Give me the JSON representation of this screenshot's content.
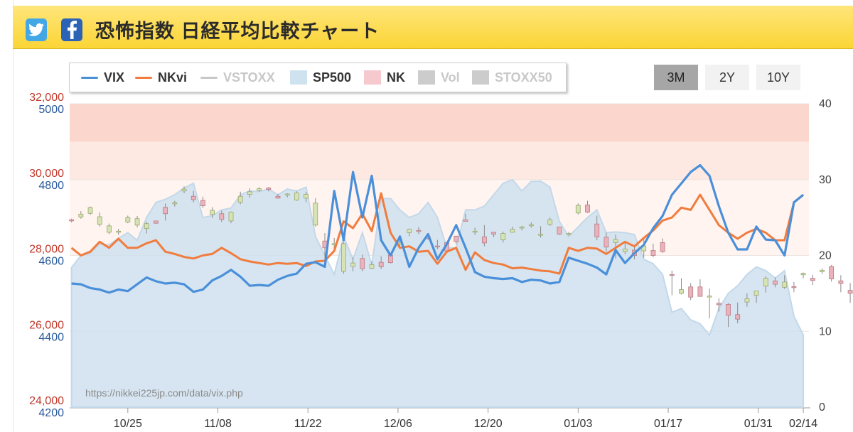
{
  "header": {
    "title": "恐怖指数 日経平均比較チャート",
    "twitter_icon": "twitter-bird-icon",
    "facebook_icon": "facebook-f-icon",
    "colors": {
      "header_bg": "#fbd536",
      "twitter": "#43a7e6",
      "facebook": "#2c63b6"
    }
  },
  "range_buttons": {
    "b3m": "3M",
    "b2y": "2Y",
    "b10y": "10Y",
    "active": "3M"
  },
  "watermark": "https://nikkei225jp.com/data/vix.php",
  "chart_data": {
    "type": "line",
    "legend": [
      {
        "name": "VIX",
        "enabled": true,
        "color": "#4a8fd9"
      },
      {
        "name": "NKvi",
        "enabled": true,
        "color": "#f07c3e"
      },
      {
        "name": "VSTOXX",
        "enabled": false,
        "color": "#c8c8c8"
      },
      {
        "name": "SP500",
        "enabled": true,
        "color": "#cfe2f0"
      },
      {
        "name": "NK",
        "enabled": true,
        "color": "#f6c9cf"
      },
      {
        "name": "Vol",
        "enabled": false,
        "color": "#cccccc"
      },
      {
        "name": "STOXX50",
        "enabled": false,
        "color": "#cccccc"
      }
    ],
    "x_ticks": [
      "10/25",
      "11/08",
      "11/22",
      "12/06",
      "12/20",
      "01/03",
      "01/17",
      "01/31",
      "02/14"
    ],
    "y_left_nk": {
      "ticks": [
        "32,000",
        "30,000",
        "28,000",
        "26,000",
        "24,000"
      ],
      "ylim": [
        24000,
        32000
      ]
    },
    "y_left_sp500": {
      "ticks": [
        "5000",
        "4800",
        "4600",
        "4400",
        "4200"
      ],
      "ylim": [
        4200,
        5000
      ]
    },
    "y_right_vix": {
      "ticks": [
        "40",
        "30",
        "20",
        "10",
        "0"
      ],
      "ylim": [
        0,
        40
      ]
    },
    "fear_bands": [
      {
        "from": 35,
        "to": 40,
        "color": "#fbd6cc"
      },
      {
        "from": 30,
        "to": 35,
        "color": "#fde9e2"
      },
      {
        "from": 20,
        "to": 30,
        "color": "#fff4f0"
      }
    ],
    "series": [
      {
        "name": "VIX",
        "values": [
          16.3,
          16.2,
          15.7,
          15.5,
          15.1,
          15.5,
          15.3,
          16.2,
          17.1,
          16.6,
          16.3,
          16.4,
          16.2,
          15.2,
          15.5,
          16.7,
          17.3,
          18.1,
          17.2,
          16.0,
          16.1,
          16.0,
          16.8,
          17.3,
          17.6,
          18.9,
          19.1,
          18.5,
          28.5,
          22.0,
          31.0,
          25.0,
          30.5,
          22.0,
          20.0,
          22.5,
          18.5,
          21.0,
          22.8,
          19.5,
          21.5,
          24.0,
          21.0,
          17.8,
          17.2,
          17.0,
          16.9,
          17.0,
          16.5,
          16.8,
          16.7,
          16.3,
          16.5,
          19.7,
          19.3,
          18.9,
          18.4,
          17.5,
          20.7,
          19.0,
          20.3,
          21.4,
          23.6,
          25.2,
          28.0,
          29.5,
          31.0,
          31.9,
          30.5,
          26.5,
          23.0,
          20.8,
          20.8,
          23.8,
          22.1,
          22.0,
          20.0,
          27.0,
          28.0
        ]
      },
      {
        "name": "NKvi",
        "values": [
          21.0,
          20.0,
          20.5,
          21.8,
          21.0,
          22.2,
          21.0,
          21.0,
          21.6,
          22.0,
          20.5,
          20.2,
          19.8,
          19.6,
          20.0,
          20.2,
          21.0,
          20.3,
          19.5,
          19.2,
          19.0,
          18.8,
          19.0,
          18.9,
          19.0,
          18.6,
          19.2,
          19.3,
          20.6,
          24.5,
          23.6,
          25.5,
          23.2,
          28.2,
          23.0,
          21.0,
          21.2,
          20.5,
          20.6,
          18.9,
          20.5,
          21.0,
          18.1,
          20.4,
          19.4,
          19.0,
          18.8,
          18.3,
          18.4,
          18.2,
          18.0,
          17.9,
          17.6,
          21.0,
          20.6,
          21.0,
          20.9,
          20.2,
          21.0,
          21.8,
          21.2,
          22.3,
          23.3,
          24.6,
          25.0,
          26.3,
          26.0,
          28.0,
          26.0,
          24.0,
          23.0,
          22.2,
          23.0,
          23.5,
          23.0,
          22.0,
          22.0,
          27.0,
          28.0
        ]
      }
    ],
    "sp500_values": [
      4568,
      4600,
      4605,
      4630,
      4628,
      4645,
      4660,
      4640,
      4700,
      4740,
      4748,
      4760,
      4778,
      4790,
      4700,
      4705,
      4720,
      4725,
      4760,
      4770,
      4768,
      4775,
      4760,
      4775,
      4770,
      4780,
      4650,
      4600,
      4550,
      4650,
      4590,
      4660,
      4575,
      4750,
      4750,
      4720,
      4700,
      4710,
      4740,
      4700,
      4620,
      4620,
      4720,
      4720,
      4730,
      4760,
      4790,
      4800,
      4770,
      4795,
      4796,
      4780,
      4690,
      4650,
      4675,
      4700,
      4720,
      4660,
      4662,
      4660,
      4655,
      4590,
      4578,
      4550,
      4450,
      4460,
      4430,
      4420,
      4390,
      4460,
      4500,
      4520,
      4550,
      4570,
      4560,
      4540,
      4560,
      4440,
      4390
    ],
    "nk_candles": [
      [
        28940,
        28970,
        28870,
        28920
      ],
      [
        29010,
        29170,
        28970,
        29090
      ],
      [
        29110,
        29290,
        29070,
        29260
      ],
      [
        28820,
        29130,
        28760,
        29020
      ],
      [
        28610,
        28840,
        28560,
        28780
      ],
      [
        28620,
        28700,
        28540,
        28640
      ],
      [
        28880,
        29050,
        28850,
        29000
      ],
      [
        28800,
        29040,
        28740,
        28970
      ],
      [
        28710,
        28890,
        28580,
        28840
      ],
      [
        28910,
        28880,
        28830,
        28850
      ],
      [
        29270,
        29370,
        28920,
        29100
      ],
      [
        29380,
        29440,
        29290,
        29390
      ],
      [
        29700,
        29820,
        29640,
        29750
      ],
      [
        29560,
        29700,
        29400,
        29470
      ],
      [
        29450,
        29550,
        29250,
        29310
      ],
      [
        29080,
        29270,
        28990,
        29190
      ],
      [
        29100,
        29180,
        28880,
        28950
      ],
      [
        28910,
        29160,
        28850,
        29140
      ],
      [
        29400,
        29680,
        29350,
        29560
      ],
      [
        29610,
        29770,
        29520,
        29680
      ],
      [
        29710,
        29800,
        29680,
        29760
      ],
      [
        29780,
        29800,
        29690,
        29740
      ],
      [
        29560,
        29620,
        29510,
        29510
      ],
      [
        29610,
        29640,
        29530,
        29620
      ],
      [
        29460,
        29690,
        29440,
        29650
      ],
      [
        29510,
        29670,
        29400,
        29610
      ],
      [
        28800,
        29510,
        28760,
        29380
      ],
      [
        28380,
        28590,
        27730,
        28200
      ],
      [
        28280,
        28460,
        28180,
        28310
      ],
      [
        27580,
        28350,
        27520,
        28310
      ],
      [
        27710,
        27950,
        27580,
        27800
      ],
      [
        27920,
        28020,
        27580,
        27650
      ],
      [
        27660,
        27840,
        27640,
        27760
      ],
      [
        27820,
        27980,
        27640,
        27700
      ],
      [
        28010,
        28050,
        27790,
        27810
      ],
      [
        28290,
        28510,
        28210,
        28330
      ],
      [
        28600,
        28710,
        28510,
        28690
      ],
      [
        28660,
        28750,
        28560,
        28630
      ],
      [
        28500,
        28560,
        28410,
        28450
      ],
      [
        28250,
        28410,
        28160,
        28240
      ],
      [
        28340,
        28370,
        28090,
        28120
      ],
      [
        28510,
        28520,
        28300,
        28370
      ],
      [
        28940,
        29100,
        28940,
        28900
      ],
      [
        28630,
        28730,
        28540,
        28640
      ],
      [
        28490,
        28800,
        28240,
        28330
      ],
      [
        28610,
        28620,
        28480,
        28560
      ],
      [
        28410,
        28630,
        28340,
        28580
      ],
      [
        28610,
        28760,
        28610,
        28690
      ],
      [
        28740,
        28780,
        28660,
        28750
      ],
      [
        28800,
        28870,
        28730,
        28810
      ],
      [
        28560,
        28770,
        28470,
        28560
      ],
      [
        28820,
        29000,
        28780,
        28940
      ],
      [
        28750,
        28760,
        28540,
        28560
      ],
      [
        28580,
        28620,
        28520,
        28580
      ],
      [
        29120,
        29370,
        29080,
        29320
      ],
      [
        29330,
        29440,
        29120,
        29140
      ],
      [
        28830,
        29050,
        28400,
        28490
      ],
      [
        28480,
        28600,
        28100,
        28220
      ],
      [
        28340,
        28550,
        27920,
        28420
      ],
      [
        28100,
        28350,
        28030,
        28170
      ],
      [
        28140,
        28270,
        27900,
        28000
      ],
      [
        28120,
        28440,
        27940,
        28250
      ],
      [
        28130,
        28310,
        27950,
        28000
      ],
      [
        28340,
        28450,
        28070,
        28100
      ],
      [
        27500,
        27600,
        26950,
        27480
      ],
      [
        27000,
        27400,
        26970,
        27100
      ],
      [
        27170,
        27270,
        26820,
        26900
      ],
      [
        27170,
        27370,
        26940,
        26920
      ],
      [
        26920,
        27130,
        26340,
        26930
      ],
      [
        26740,
        26870,
        26520,
        26700
      ],
      [
        26710,
        26740,
        26110,
        26420
      ],
      [
        26440,
        26760,
        26210,
        26320
      ],
      [
        26770,
        27000,
        26650,
        26860
      ],
      [
        26950,
        27010,
        26750,
        27060
      ],
      [
        27190,
        27450,
        27020,
        27400
      ],
      [
        27330,
        27420,
        27160,
        27240
      ],
      [
        27160,
        27480,
        27120,
        27300
      ],
      [
        27180,
        27300,
        27030,
        27150
      ],
      [
        27490,
        27550,
        27400,
        27530
      ],
      [
        27400,
        27490,
        27220,
        27340
      ],
      [
        27570,
        27660,
        27510,
        27610
      ],
      [
        27710,
        27750,
        27310,
        27380
      ],
      [
        27330,
        27480,
        27030,
        27260
      ],
      [
        27080,
        27270,
        26750,
        27000
      ],
      [
        26770,
        26880,
        26400,
        26710
      ]
    ]
  }
}
